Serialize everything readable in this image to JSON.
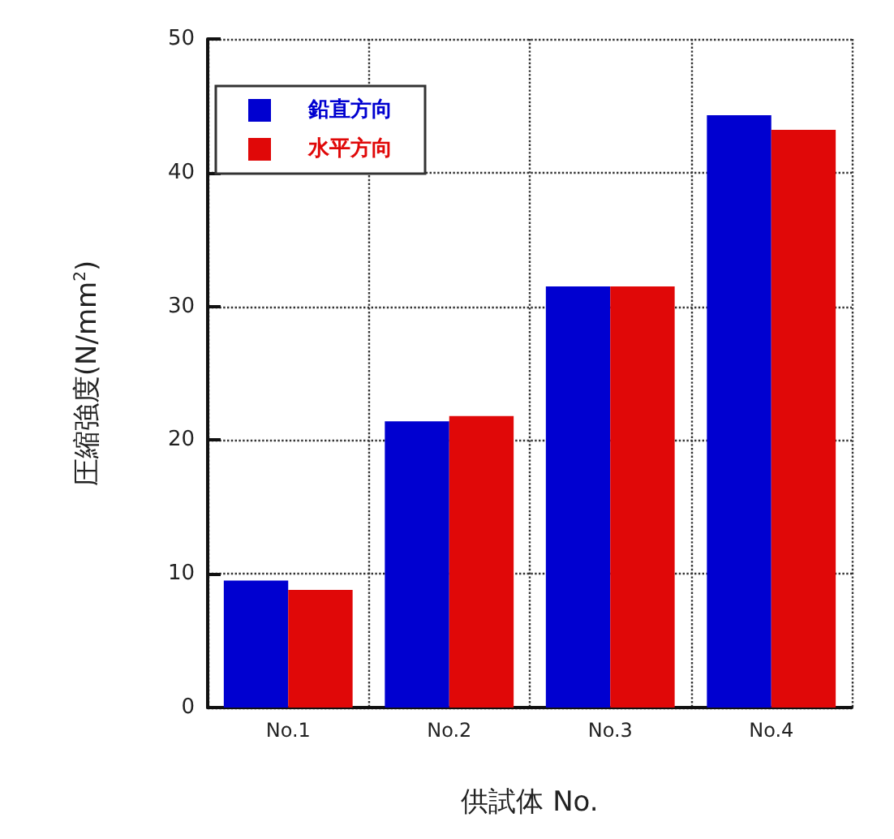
{
  "chart_data": {
    "type": "bar",
    "xlabel": "供試体 No.",
    "ylabel": "圧縮強度(N/mm$^{2}$)",
    "categories": [
      "No.1",
      "No.2",
      "No.3",
      "No.4"
    ],
    "series": [
      {
        "name": "鉛直方向",
        "color": "#0000d0",
        "values": [
          9.5,
          21.4,
          31.5,
          44.3
        ]
      },
      {
        "name": "水平方向",
        "color": "#e00808",
        "values": [
          8.8,
          21.8,
          31.5,
          43.2
        ]
      }
    ],
    "ylim": [
      0,
      50
    ],
    "yticks": [
      0,
      10,
      20,
      30,
      40,
      50
    ],
    "grid": true,
    "legend": "top left"
  }
}
